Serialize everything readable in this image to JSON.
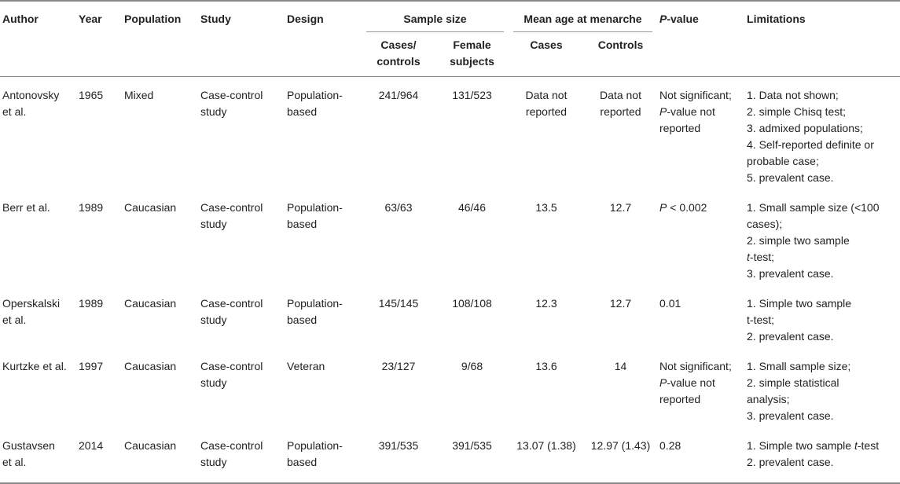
{
  "headers": {
    "author": "Author",
    "year": "Year",
    "population": "Population",
    "study": "Study",
    "design": "Design",
    "sample_size": "Sample size",
    "mean_age": "Mean age at menarche",
    "p_value_italic": "P",
    "p_value_rest": "-value",
    "limitations": "Limitations",
    "cases_controls_1": "Cases/",
    "cases_controls_2": "controls",
    "female_subjects_1": "Female",
    "female_subjects_2": "subjects",
    "cases": "Cases",
    "controls": "Controls"
  },
  "rows": [
    {
      "author": [
        "Antonovsky",
        "et al."
      ],
      "year": "1965",
      "population": "Mixed",
      "study": [
        "Case-control",
        "study"
      ],
      "design": [
        "Population-",
        "based"
      ],
      "cases_controls": "241/964",
      "female_subjects": "131/523",
      "age_cases": [
        "Data not",
        "reported"
      ],
      "age_controls": [
        "Data not",
        "reported"
      ],
      "p_value": [
        "Not significant;",
        "P-value not",
        "reported"
      ],
      "limitations": [
        "1. Data not shown;",
        "2. simple Chisq test;",
        "3. admixed populations;",
        "4. Self-reported definite or",
        "probable case;",
        "5. prevalent case."
      ]
    },
    {
      "author": [
        "Berr et al."
      ],
      "year": "1989",
      "population": "Caucasian",
      "study": [
        "Case-control",
        "study"
      ],
      "design": [
        "Population-",
        "based"
      ],
      "cases_controls": "63/63",
      "female_subjects": "46/46",
      "age_cases": [
        "13.5"
      ],
      "age_controls": [
        "12.7"
      ],
      "p_value": [
        "P < 0.002"
      ],
      "limitations": [
        "1. Small sample size (<100",
        "cases);",
        "2. simple two sample",
        "t-test;",
        "3. prevalent case."
      ]
    },
    {
      "author": [
        "Operskalski",
        "et al."
      ],
      "year": "1989",
      "population": "Caucasian",
      "study": [
        "Case-control",
        "study"
      ],
      "design": [
        "Population-",
        "based"
      ],
      "cases_controls": "145/145",
      "female_subjects": "108/108",
      "age_cases": [
        "12.3"
      ],
      "age_controls": [
        "12.7"
      ],
      "p_value": [
        "0.01"
      ],
      "limitations": [
        "1. Simple two sample",
        "t-test;",
        "2. prevalent case."
      ]
    },
    {
      "author": [
        "Kurtzke et al."
      ],
      "year": "1997",
      "population": "Caucasian",
      "study": [
        "Case-control",
        "study"
      ],
      "design": [
        "Veteran"
      ],
      "cases_controls": "23/127",
      "female_subjects": "9/68",
      "age_cases": [
        "13.6"
      ],
      "age_controls": [
        "14"
      ],
      "p_value": [
        "Not significant;",
        "P-value not",
        "reported"
      ],
      "limitations": [
        "1. Small sample size;",
        "2. simple statistical",
        "analysis;",
        "3. prevalent case."
      ]
    },
    {
      "author": [
        "Gustavsen",
        "et al."
      ],
      "year": "2014",
      "population": "Caucasian",
      "study": [
        "Case-control",
        "study"
      ],
      "design": [
        "Population-",
        "based"
      ],
      "cases_controls": "391/535",
      "female_subjects": "391/535",
      "age_cases": [
        "13.07 (1.38)"
      ],
      "age_controls": [
        "12.97 (1.43)"
      ],
      "p_value": [
        "0.28"
      ],
      "limitations": [
        "1. Simple two sample t-test",
        "2. prevalent case."
      ]
    }
  ]
}
